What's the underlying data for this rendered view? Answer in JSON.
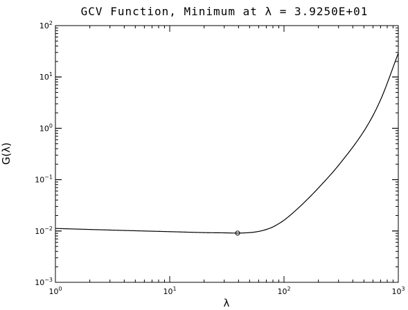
{
  "chart_data": {
    "type": "line",
    "title": "GCV Function,  Minimum at λ =  3.9250E+01",
    "xlabel": "λ",
    "ylabel": "G(λ)",
    "xscale": "log",
    "yscale": "log",
    "xlim": [
      1,
      1000
    ],
    "ylim": [
      0.001,
      100
    ],
    "grid": false,
    "x_ticks": [
      {
        "base": "10",
        "exp": "0",
        "value": 1
      },
      {
        "base": "10",
        "exp": "1",
        "value": 10
      },
      {
        "base": "10",
        "exp": "2",
        "value": 100
      },
      {
        "base": "10",
        "exp": "3",
        "value": 1000
      }
    ],
    "y_ticks": [
      {
        "base": "10",
        "exp": "−3",
        "value": 0.001
      },
      {
        "base": "10",
        "exp": "−2",
        "value": 0.01
      },
      {
        "base": "10",
        "exp": "−1",
        "value": 0.1
      },
      {
        "base": "10",
        "exp": "0",
        "value": 1
      },
      {
        "base": "10",
        "exp": "1",
        "value": 10
      },
      {
        "base": "10",
        "exp": "2",
        "value": 100
      }
    ],
    "series": [
      {
        "x": [
          1,
          2,
          5,
          10,
          20,
          30,
          39.25,
          50,
          60,
          70,
          80,
          90,
          100,
          120,
          150,
          200,
          300,
          500,
          700,
          1000
        ],
        "y": [
          0.0112,
          0.0107,
          0.0101,
          0.0097,
          0.0093,
          0.0092,
          0.0091,
          0.0093,
          0.0098,
          0.0107,
          0.012,
          0.0139,
          0.0162,
          0.0226,
          0.0358,
          0.0688,
          0.19,
          0.88,
          3.6,
          29
        ]
      }
    ],
    "marker": {
      "x": 39.25,
      "y": 0.0091,
      "shape": "open-circle"
    }
  }
}
